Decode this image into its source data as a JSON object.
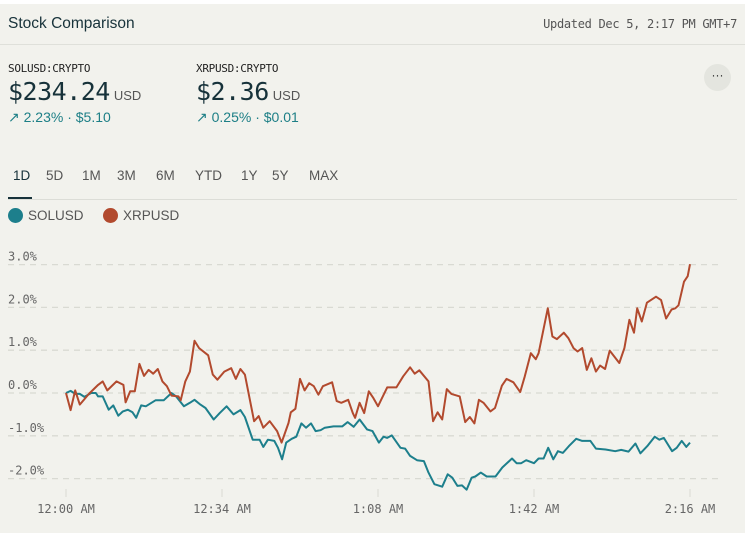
{
  "header": {
    "title": "Stock Comparison",
    "updated": "Updated Dec 5, 2:17 PM GMT+7"
  },
  "quotes": [
    {
      "symbol": "SOLUSD:CRYPTO",
      "price": "$234.24",
      "currency": "USD",
      "change": "↗ 2.23% · $5.10"
    },
    {
      "symbol": "XRPUSD:CRYPTO",
      "price": "$2.36",
      "currency": "USD",
      "change": "↗ 0.25% · $0.01"
    }
  ],
  "more_icon": "more-horizontal-icon",
  "more_label": "···",
  "tabs": [
    {
      "label": "1D",
      "active": true
    },
    {
      "label": "5D"
    },
    {
      "label": "1M"
    },
    {
      "label": "3M"
    },
    {
      "label": "6M"
    },
    {
      "label": "YTD"
    },
    {
      "label": "1Y"
    },
    {
      "label": "5Y"
    },
    {
      "label": "MAX"
    }
  ],
  "chart_data": {
    "type": "line",
    "title": "",
    "xlabel": "",
    "ylabel": "",
    "x_tick_labels": [
      "12:00 AM",
      "12:34 AM",
      "1:08 AM",
      "1:42 AM",
      "2:16 AM"
    ],
    "x_tick_minutes": [
      0,
      34,
      68,
      102,
      136
    ],
    "y_tick_labels": [
      "3.0%",
      "2.0%",
      "1.0%",
      "0.0%",
      "-1.0%",
      "-2.0%"
    ],
    "y_ticks": [
      3,
      2,
      1,
      0,
      -1,
      -2
    ],
    "ylim": [
      -2.6,
      3.3
    ],
    "grid": "horizontal dashed",
    "legend": "top-left",
    "series": [
      {
        "name": "SOLUSD",
        "color": "#1d7f8c",
        "points": [
          [
            0,
            0
          ],
          [
            1,
            0.05
          ],
          [
            2,
            -0.02
          ],
          [
            3,
            -0.02
          ],
          [
            4,
            -0.09
          ],
          [
            5.5,
            0
          ],
          [
            6.5,
            0
          ],
          [
            7,
            -0.08
          ],
          [
            8,
            -0.08
          ],
          [
            9.3,
            -0.39
          ],
          [
            10.3,
            -0.29
          ],
          [
            11.4,
            -0.53
          ],
          [
            12.4,
            -0.43
          ],
          [
            13.5,
            -0.39
          ],
          [
            14.5,
            -0.45
          ],
          [
            15.3,
            -0.58
          ],
          [
            16.4,
            -0.29
          ],
          [
            17.4,
            -0.31
          ],
          [
            19.5,
            -0.17
          ],
          [
            21.3,
            -0.17
          ],
          [
            23,
            0
          ],
          [
            24,
            -0.08
          ],
          [
            25.7,
            -0.31
          ],
          [
            27,
            -0.23
          ],
          [
            28,
            -0.16
          ],
          [
            29.3,
            -0.27
          ],
          [
            30.4,
            -0.35
          ],
          [
            32.2,
            -0.62
          ],
          [
            33.5,
            -0.47
          ],
          [
            35,
            -0.31
          ],
          [
            36.5,
            -0.5
          ],
          [
            38,
            -0.4
          ],
          [
            39,
            -0.56
          ],
          [
            40.7,
            -1.09
          ],
          [
            42.2,
            -1.09
          ],
          [
            43,
            -1.26
          ],
          [
            44,
            -1.09
          ],
          [
            45.4,
            -1.12
          ],
          [
            46.2,
            -1.28
          ],
          [
            47.1,
            -1.55
          ],
          [
            48,
            -1.16
          ],
          [
            49.2,
            -1.07
          ],
          [
            50.2,
            -1.02
          ],
          [
            51.3,
            -0.71
          ],
          [
            52.3,
            -0.81
          ],
          [
            53.4,
            -0.71
          ],
          [
            54.4,
            -0.89
          ],
          [
            55.5,
            -0.87
          ],
          [
            56.4,
            -0.81
          ],
          [
            58.3,
            -0.78
          ],
          [
            60.2,
            -0.78
          ],
          [
            61.4,
            -0.68
          ],
          [
            62.7,
            -0.79
          ],
          [
            64,
            -0.62
          ],
          [
            65.6,
            -0.85
          ],
          [
            66.8,
            -0.89
          ],
          [
            68.2,
            -1.16
          ],
          [
            69.2,
            -1.02
          ],
          [
            70,
            -1.05
          ],
          [
            71,
            -0.99
          ],
          [
            72.9,
            -1.28
          ],
          [
            73.9,
            -1.3
          ],
          [
            75,
            -1.47
          ],
          [
            76.5,
            -1.57
          ],
          [
            78,
            -1.59
          ],
          [
            79,
            -1.86
          ],
          [
            80.3,
            -2.13
          ],
          [
            82,
            -2.19
          ],
          [
            83.2,
            -1.9
          ],
          [
            84.2,
            -1.98
          ],
          [
            85.3,
            -2.17
          ],
          [
            86.3,
            -2.16
          ],
          [
            87.3,
            -2.26
          ],
          [
            88.4,
            -1.98
          ],
          [
            89.2,
            -1.95
          ],
          [
            90.4,
            -1.86
          ],
          [
            91.7,
            -1.95
          ],
          [
            93.6,
            -1.95
          ],
          [
            95.1,
            -1.74
          ],
          [
            97.2,
            -1.53
          ],
          [
            98.2,
            -1.64
          ],
          [
            99.2,
            -1.64
          ],
          [
            100.3,
            -1.57
          ],
          [
            102,
            -1.64
          ],
          [
            103,
            -1.53
          ],
          [
            104.1,
            -1.53
          ],
          [
            105.1,
            -1.28
          ],
          [
            106.2,
            -1.55
          ],
          [
            107.2,
            -1.36
          ],
          [
            108.3,
            -1.4
          ],
          [
            109.6,
            -1.24
          ],
          [
            111.2,
            -1.07
          ],
          [
            112.5,
            -1.12
          ],
          [
            114.3,
            -1.12
          ],
          [
            115.5,
            -1.3
          ],
          [
            117.6,
            -1.32
          ],
          [
            119.7,
            -1.36
          ],
          [
            121,
            -1.33
          ],
          [
            122.6,
            -1.37
          ],
          [
            124.1,
            -1.18
          ],
          [
            125.2,
            -1.41
          ],
          [
            126.7,
            -1.24
          ],
          [
            128.3,
            -1.02
          ],
          [
            129.3,
            -1.09
          ],
          [
            130.3,
            -1.05
          ],
          [
            132.1,
            -1.36
          ],
          [
            133.1,
            -1.28
          ],
          [
            134.2,
            -1.12
          ],
          [
            135.2,
            -1.26
          ],
          [
            136,
            -1.16
          ]
        ]
      },
      {
        "name": "XRPUSD",
        "color": "#b24a2e",
        "points": [
          [
            0,
            0
          ],
          [
            1,
            -0.4
          ],
          [
            2,
            0.06
          ],
          [
            3,
            -0.27
          ],
          [
            5,
            -0.02
          ],
          [
            7,
            0.19
          ],
          [
            8,
            0.27
          ],
          [
            9,
            0.06
          ],
          [
            11,
            0.27
          ],
          [
            12.5,
            0.19
          ],
          [
            13,
            -0.22
          ],
          [
            14,
            0.04
          ],
          [
            15,
            0.04
          ],
          [
            16,
            0.68
          ],
          [
            17,
            0.4
          ],
          [
            18,
            0.54
          ],
          [
            19,
            0.45
          ],
          [
            20,
            0.56
          ],
          [
            21,
            0.27
          ],
          [
            22,
            0.16
          ],
          [
            23,
            -0.06
          ],
          [
            24.5,
            -0.08
          ],
          [
            25,
            -0.17
          ],
          [
            26,
            0.27
          ],
          [
            27,
            0.5
          ],
          [
            28,
            1.22
          ],
          [
            29,
            1.05
          ],
          [
            31,
            0.88
          ],
          [
            32,
            0.43
          ],
          [
            33,
            0.31
          ],
          [
            34.5,
            0.5
          ],
          [
            36,
            0.58
          ],
          [
            37,
            0.33
          ],
          [
            38,
            0.56
          ],
          [
            39,
            0.43
          ],
          [
            41,
            -0.66
          ],
          [
            42,
            -0.54
          ],
          [
            43,
            -0.81
          ],
          [
            44.4,
            -0.66
          ],
          [
            46,
            -0.89
          ],
          [
            47,
            -1.16
          ],
          [
            48.5,
            -0.7
          ],
          [
            49,
            -0.45
          ],
          [
            50,
            -0.37
          ],
          [
            51,
            0.33
          ],
          [
            52,
            0.06
          ],
          [
            53,
            0.23
          ],
          [
            54,
            0.16
          ],
          [
            55,
            -0.04
          ],
          [
            56,
            0.16
          ],
          [
            58,
            0.25
          ],
          [
            59,
            -0.19
          ],
          [
            60,
            -0.23
          ],
          [
            61.5,
            -0.16
          ],
          [
            62.5,
            -0.47
          ],
          [
            63,
            -0.58
          ],
          [
            64,
            -0.23
          ],
          [
            65,
            -0.47
          ],
          [
            66,
            0.04
          ],
          [
            67,
            -0.12
          ],
          [
            68,
            -0.31
          ],
          [
            70,
            0.13
          ],
          [
            72,
            0.13
          ],
          [
            73.5,
            0.39
          ],
          [
            75,
            0.6
          ],
          [
            76,
            0.45
          ],
          [
            77,
            0.53
          ],
          [
            79,
            0.27
          ],
          [
            80,
            -0.66
          ],
          [
            81,
            -0.45
          ],
          [
            82,
            -0.62
          ],
          [
            83,
            0.09
          ],
          [
            84,
            -0.02
          ],
          [
            85.8,
            -0.08
          ],
          [
            87,
            -0.68
          ],
          [
            88,
            -0.56
          ],
          [
            89,
            -0.71
          ],
          [
            90,
            -0.16
          ],
          [
            91,
            -0.23
          ],
          [
            92.5,
            -0.43
          ],
          [
            93.5,
            -0.35
          ],
          [
            95,
            0.17
          ],
          [
            96,
            0.33
          ],
          [
            97.5,
            0.25
          ],
          [
            99,
            0.02
          ],
          [
            100,
            0.39
          ],
          [
            101.3,
            0.93
          ],
          [
            102.4,
            0.79
          ],
          [
            103,
            0.93
          ],
          [
            105,
            1.98
          ],
          [
            106,
            1.32
          ],
          [
            107,
            1.26
          ],
          [
            108.5,
            1.41
          ],
          [
            109.5,
            1.28
          ],
          [
            110.6,
            1.05
          ],
          [
            111.5,
            0.97
          ],
          [
            112.5,
            1.05
          ],
          [
            113.5,
            0.54
          ],
          [
            114.5,
            0.81
          ],
          [
            115.5,
            0.5
          ],
          [
            116.4,
            0.64
          ],
          [
            117.5,
            0.56
          ],
          [
            118.5,
            0.99
          ],
          [
            120.6,
            0.7
          ],
          [
            121.7,
            1.05
          ],
          [
            122.8,
            1.71
          ],
          [
            123.8,
            1.41
          ],
          [
            124.5,
            1.98
          ],
          [
            125.5,
            1.67
          ],
          [
            126.6,
            2.11
          ],
          [
            128.6,
            2.25
          ],
          [
            129.7,
            2.17
          ],
          [
            130.8,
            1.74
          ],
          [
            132,
            1.95
          ],
          [
            132.8,
            1.98
          ],
          [
            133.5,
            2.05
          ],
          [
            134.7,
            2.6
          ],
          [
            135.5,
            2.73
          ],
          [
            136,
            3.01
          ]
        ]
      }
    ]
  }
}
